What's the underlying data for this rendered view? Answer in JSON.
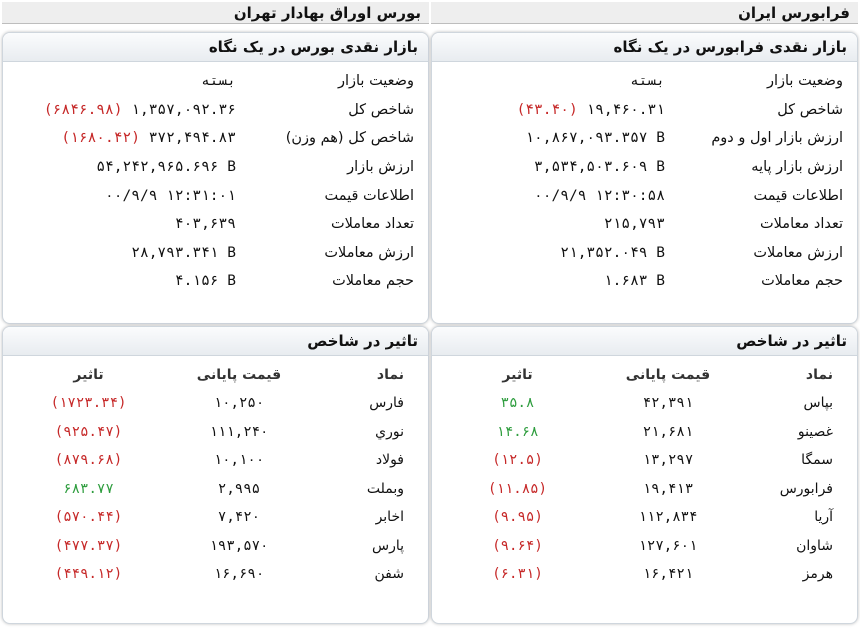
{
  "left": {
    "section_title": "بورس اوراق بهادار تهران",
    "summary": {
      "title": "بازار نقدی بورس در یک نگاه",
      "rows": [
        {
          "label": "وضعیت بازار",
          "value": "بسته",
          "extra": ""
        },
        {
          "label": "شاخص کل",
          "value": "۱,۳۵۷,۰۹۲.۳۶",
          "extra": "(۶۸۴۶.۹۸)"
        },
        {
          "label": "شاخص کل (هم وزن)",
          "value": "۳۷۲,۴۹۴.۸۳",
          "extra": "(۱۶۸۰.۴۲)"
        },
        {
          "label": "ارزش بازار",
          "value": "۵۴,۲۴۲,۹۶۵.۶۹۶ B",
          "extra": ""
        },
        {
          "label": "اطلاعات قیمت",
          "value": "۰۰/۹/۹ ۱۲:۳۱:۰۱",
          "extra": ""
        },
        {
          "label": "تعداد معاملات",
          "value": "۴۰۳,۶۳۹",
          "extra": ""
        },
        {
          "label": "ارزش معاملات",
          "value": "۲۸,۷۹۳.۳۴۱ B",
          "extra": ""
        },
        {
          "label": "حجم معاملات",
          "value": "۴.۱۵۶ B",
          "extra": ""
        }
      ]
    },
    "impact": {
      "title": "تاثیر در شاخص",
      "headers": {
        "symbol": "نماد",
        "price": "قیمت پایانی",
        "effect": "تاثیر"
      },
      "rows": [
        {
          "symbol": "فارس",
          "price": "۱۰,۲۵۰",
          "effect": "(۱۷۲۳.۳۴)",
          "sign": "neg"
        },
        {
          "symbol": "نوري",
          "price": "۱۱۱,۲۴۰",
          "effect": "(۹۲۵.۴۷)",
          "sign": "neg"
        },
        {
          "symbol": "فولاد",
          "price": "۱۰,۱۰۰",
          "effect": "(۸۷۹.۶۸)",
          "sign": "neg"
        },
        {
          "symbol": "وبملت",
          "price": "۲,۹۹۵",
          "effect": "۶۸۳.۷۷",
          "sign": "pos"
        },
        {
          "symbol": "اخابر",
          "price": "۷,۴۲۰",
          "effect": "(۵۷۰.۴۴)",
          "sign": "neg"
        },
        {
          "symbol": "پارس",
          "price": "۱۹۳,۵۷۰",
          "effect": "(۴۷۷.۳۷)",
          "sign": "neg"
        },
        {
          "symbol": "شفن",
          "price": "۱۶,۶۹۰",
          "effect": "(۴۴۹.۱۲)",
          "sign": "neg"
        }
      ]
    }
  },
  "right": {
    "section_title": "فرابورس ایران",
    "summary": {
      "title": "بازار نقدی فرابورس در یک نگاه",
      "rows": [
        {
          "label": "وضعیت بازار",
          "value": "بسته",
          "extra": ""
        },
        {
          "label": "شاخص کل",
          "value": "۱۹,۴۶۰.۳۱",
          "extra": "(۴۳.۴۰)"
        },
        {
          "label": "ارزش بازار اول و دوم",
          "value": "۱۰,۸۶۷,۰۹۳.۳۵۷ B",
          "extra": ""
        },
        {
          "label": "ارزش بازار پایه",
          "value": "۳,۵۳۴,۵۰۳.۶۰۹ B",
          "extra": ""
        },
        {
          "label": "اطلاعات قیمت",
          "value": "۰۰/۹/۹ ۱۲:۳۰:۵۸",
          "extra": ""
        },
        {
          "label": "تعداد معاملات",
          "value": "۲۱۵,۷۹۳",
          "extra": ""
        },
        {
          "label": "ارزش معاملات",
          "value": "۲۱,۳۵۲.۰۴۹ B",
          "extra": ""
        },
        {
          "label": "حجم معاملات",
          "value": "۱.۶۸۳ B",
          "extra": ""
        }
      ]
    },
    "impact": {
      "title": "تاثیر در شاخص",
      "headers": {
        "symbol": "نماد",
        "price": "قیمت پایانی",
        "effect": "تاثیر"
      },
      "rows": [
        {
          "symbol": "بپاس",
          "price": "۴۲,۳۹۱",
          "effect": "۳۵.۸",
          "sign": "pos"
        },
        {
          "symbol": "غصینو",
          "price": "۲۱,۶۸۱",
          "effect": "۱۴.۶۸",
          "sign": "pos"
        },
        {
          "symbol": "سمگا",
          "price": "۱۳,۲۹۷",
          "effect": "(۱۲.۵)",
          "sign": "neg"
        },
        {
          "symbol": "فرابورس",
          "price": "۱۹,۴۱۳",
          "effect": "(۱۱.۸۵)",
          "sign": "neg"
        },
        {
          "symbol": "آریا",
          "price": "۱۱۲,۸۳۴",
          "effect": "(۹.۹۵)",
          "sign": "neg"
        },
        {
          "symbol": "شاوان",
          "price": "۱۲۷,۶۰۱",
          "effect": "(۹.۶۴)",
          "sign": "neg"
        },
        {
          "symbol": "هرمز",
          "price": "۱۶,۴۲۱",
          "effect": "(۶.۳۱)",
          "sign": "neg"
        }
      ]
    }
  }
}
